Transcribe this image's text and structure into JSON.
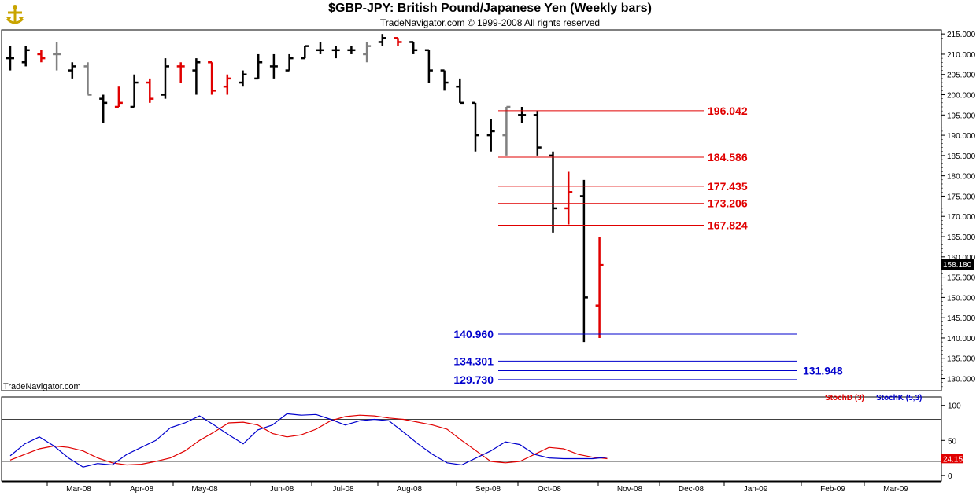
{
  "header": {
    "title": "$GBP-JPY:  British Pound/Japanese Yen  (Weekly bars)",
    "subtitle": "TradeNavigator.com © 1999-2008 All rights reserved"
  },
  "watermark": "TradeNavigator.com",
  "colors": {
    "up": "#000000",
    "down": "#e00000",
    "neutral": "#808080",
    "fib_red": "#e00000",
    "fib_blue": "#0000cc",
    "stoch_d": "#e00000",
    "stoch_k": "#0000cc"
  },
  "chart_data": [
    {
      "type": "ohlc",
      "name": "price",
      "ylim": [
        127,
        216
      ],
      "y_ticks": [
        "130.000",
        "135.000",
        "140.000",
        "145.000",
        "150.000",
        "155.000",
        "160.000",
        "165.000",
        "170.000",
        "175.000",
        "180.000",
        "185.000",
        "190.000",
        "195.000",
        "200.000",
        "205.000",
        "210.000",
        "215.000"
      ],
      "last_price_label": "158.180",
      "x_labels": [
        "Mar-08",
        "Apr-08",
        "May-08",
        "Jun-08",
        "Jul-08",
        "Aug-08",
        "Sep-08",
        "Oct-08",
        "Nov-08",
        "Dec-08",
        "Jan-09",
        "Feb-09",
        "Mar-09"
      ],
      "bars": [
        {
          "o": 209,
          "h": 212,
          "l": 206,
          "c": 209,
          "col": "up"
        },
        {
          "o": 208,
          "h": 212,
          "l": 207,
          "c": 211,
          "col": "up"
        },
        {
          "o": 210,
          "h": 211,
          "l": 208,
          "c": 209,
          "col": "down"
        },
        {
          "o": 210,
          "h": 213,
          "l": 206,
          "c": 210,
          "col": "neutral"
        },
        {
          "o": 206,
          "h": 208,
          "l": 204,
          "c": 207,
          "col": "up"
        },
        {
          "o": 207,
          "h": 208,
          "l": 200,
          "c": 200,
          "col": "neutral"
        },
        {
          "o": 199,
          "h": 200,
          "l": 193,
          "c": 198,
          "col": "up"
        },
        {
          "o": 197,
          "h": 202,
          "l": 197,
          "c": 198,
          "col": "down"
        },
        {
          "o": 197,
          "h": 205,
          "l": 197,
          "c": 203,
          "col": "up"
        },
        {
          "o": 203,
          "h": 204,
          "l": 198,
          "c": 199,
          "col": "down"
        },
        {
          "o": 200,
          "h": 209,
          "l": 199,
          "c": 207,
          "col": "up"
        },
        {
          "o": 207,
          "h": 208,
          "l": 203,
          "c": 207,
          "col": "down"
        },
        {
          "o": 206,
          "h": 209,
          "l": 200,
          "c": 208,
          "col": "up"
        },
        {
          "o": 208,
          "h": 208,
          "l": 200,
          "c": 201,
          "col": "down"
        },
        {
          "o": 202,
          "h": 205,
          "l": 200,
          "c": 204,
          "col": "down"
        },
        {
          "o": 203,
          "h": 206,
          "l": 202,
          "c": 205,
          "col": "up"
        },
        {
          "o": 204,
          "h": 210,
          "l": 204,
          "c": 208,
          "col": "up"
        },
        {
          "o": 207,
          "h": 210,
          "l": 204,
          "c": 207,
          "col": "up"
        },
        {
          "o": 206,
          "h": 210,
          "l": 206,
          "c": 209,
          "col": "up"
        },
        {
          "o": 209,
          "h": 212,
          "l": 209,
          "c": 212,
          "col": "up"
        },
        {
          "o": 211,
          "h": 213,
          "l": 210,
          "c": 211,
          "col": "up"
        },
        {
          "o": 211,
          "h": 212,
          "l": 209,
          "c": 211,
          "col": "up"
        },
        {
          "o": 211,
          "h": 212,
          "l": 210,
          "c": 211,
          "col": "up"
        },
        {
          "o": 210,
          "h": 213,
          "l": 208,
          "c": 212,
          "col": "neutral"
        },
        {
          "o": 213,
          "h": 215,
          "l": 212,
          "c": 214,
          "col": "up"
        },
        {
          "o": 214,
          "h": 214,
          "l": 212,
          "c": 213,
          "col": "down"
        },
        {
          "o": 213,
          "h": 213,
          "l": 210,
          "c": 211,
          "col": "up"
        },
        {
          "o": 211,
          "h": 211,
          "l": 203,
          "c": 206,
          "col": "up"
        },
        {
          "o": 206,
          "h": 206,
          "l": 201,
          "c": 203,
          "col": "up"
        },
        {
          "o": 202,
          "h": 204,
          "l": 198,
          "c": 198,
          "col": "up"
        },
        {
          "o": 198,
          "h": 198,
          "l": 186,
          "c": 190,
          "col": "up"
        },
        {
          "o": 190,
          "h": 194,
          "l": 186,
          "c": 191,
          "col": "up"
        },
        {
          "o": 190,
          "h": 197,
          "l": 185,
          "c": 197,
          "col": "neutral"
        },
        {
          "o": 195,
          "h": 197,
          "l": 193,
          "c": 195,
          "col": "up"
        },
        {
          "o": 195,
          "h": 196,
          "l": 185,
          "c": 187,
          "col": "up"
        },
        {
          "o": 185,
          "h": 186,
          "l": 166,
          "c": 172,
          "col": "up"
        },
        {
          "o": 172,
          "h": 181,
          "l": 168,
          "c": 176,
          "col": "down"
        },
        {
          "o": 175,
          "h": 179,
          "l": 139,
          "c": 150,
          "col": "up"
        },
        {
          "o": 148,
          "h": 165,
          "l": 140,
          "c": 158,
          "col": "down"
        }
      ],
      "fib_levels": [
        {
          "label": "196.042",
          "value": 196.042,
          "color": "red",
          "side": "right"
        },
        {
          "label": "184.586",
          "value": 184.586,
          "color": "red",
          "side": "right"
        },
        {
          "label": "177.435",
          "value": 177.435,
          "color": "red",
          "side": "right"
        },
        {
          "label": "173.206",
          "value": 173.206,
          "color": "red",
          "side": "right"
        },
        {
          "label": "167.824",
          "value": 167.824,
          "color": "red",
          "side": "right"
        },
        {
          "label": "140.960",
          "value": 140.96,
          "color": "blue",
          "side": "left"
        },
        {
          "label": "134.301",
          "value": 134.301,
          "color": "blue",
          "side": "left"
        },
        {
          "label": "131.948",
          "value": 131.948,
          "color": "blue",
          "side": "right"
        },
        {
          "label": "129.730",
          "value": 129.73,
          "color": "blue",
          "side": "left"
        }
      ]
    },
    {
      "type": "line",
      "name": "stochastic",
      "ylim": [
        -8,
        112
      ],
      "y_ticks": [
        "100",
        "50",
        "0"
      ],
      "reference_lines": [
        80,
        20
      ],
      "last_value_label": "24.15",
      "series": [
        {
          "name": "StochD (3)",
          "color": "red",
          "values": [
            22,
            30,
            38,
            42,
            40,
            35,
            25,
            18,
            15,
            16,
            20,
            25,
            35,
            50,
            62,
            75,
            76,
            72,
            60,
            55,
            58,
            66,
            78,
            84,
            86,
            85,
            82,
            80,
            76,
            72,
            66,
            50,
            35,
            20,
            18,
            20,
            30,
            40,
            38,
            30,
            26,
            24
          ]
        },
        {
          "name": "StochK (5,3)",
          "color": "blue",
          "values": [
            28,
            45,
            55,
            42,
            25,
            12,
            17,
            15,
            30,
            40,
            50,
            68,
            75,
            85,
            72,
            58,
            45,
            65,
            72,
            88,
            86,
            87,
            80,
            72,
            78,
            80,
            78,
            62,
            45,
            30,
            18,
            15,
            25,
            35,
            48,
            44,
            30,
            25,
            24,
            24,
            24,
            26
          ]
        }
      ]
    }
  ]
}
